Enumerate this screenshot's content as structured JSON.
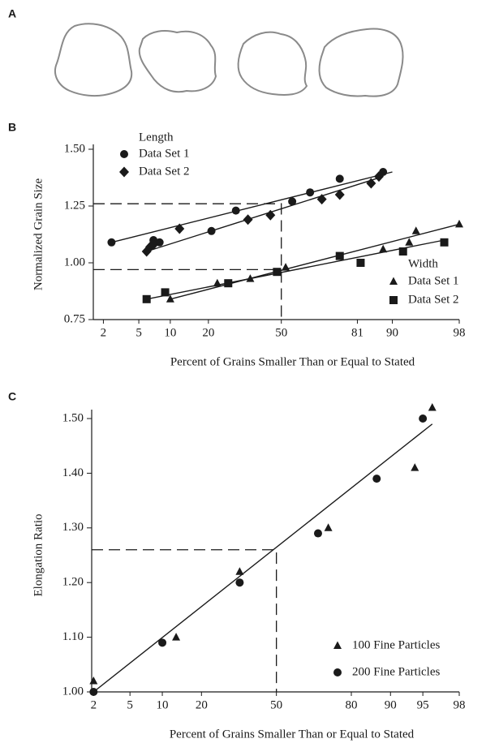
{
  "panel_a": {
    "label": "A"
  },
  "chart_data": [
    {
      "type": "scatter",
      "panel": "B",
      "xscale": "probability",
      "ylabel": "Normalized Grain Size",
      "xlabel": "Percent of Grains Smaller Than or Equal to Stated",
      "xlim": [
        1.5,
        98
      ],
      "xticks": [
        2,
        5,
        10,
        20,
        50,
        81,
        90,
        98
      ],
      "ylim": [
        0.75,
        1.5
      ],
      "yticks": [
        0.75,
        {
          "value": 1,
          "label": "1.00"
        },
        1.25,
        {
          "value": 1.5,
          "label": "1.50"
        }
      ],
      "reference_lines": [
        {
          "x": [
            1.5,
            50,
            50
          ],
          "y": [
            1.26,
            1.26,
            0.75
          ]
        },
        {
          "x": [
            1.5,
            50
          ],
          "y": [
            0.97,
            0.97
          ]
        }
      ],
      "groups": [
        {
          "title": "Length",
          "legend": "top-left",
          "series": [
            {
              "name": "Data Set 1",
              "marker": "circle",
              "color": "#1a1a1a",
              "x": [
                2.5,
                7,
                8,
                21,
                30,
                55,
                63,
                75,
                88
              ],
              "values": [
                1.09,
                1.1,
                1.09,
                1.14,
                1.23,
                1.27,
                1.31,
                1.37,
                1.4
              ],
              "fit": {
                "x": [
                  2.5,
                  90
                ],
                "y": [
                  1.09,
                  1.4
                ]
              }
            },
            {
              "name": "Data Set 2",
              "marker": "diamond",
              "color": "#1a1a1a",
              "x": [
                6,
                6.5,
                7,
                12,
                35,
                45,
                68,
                75,
                85,
                87
              ],
              "values": [
                1.05,
                1.07,
                1.08,
                1.15,
                1.19,
                1.21,
                1.28,
                1.3,
                1.35,
                1.38
              ],
              "fit": {
                "x": [
                  6,
                  88
                ],
                "y": [
                  1.05,
                  1.38
                ]
              }
            }
          ]
        },
        {
          "title": "Width",
          "legend": "right",
          "series": [
            {
              "name": "Data Set 1",
              "marker": "triangle",
              "color": "#1a1a1a",
              "x": [
                10,
                23,
                36,
                52,
                88,
                93,
                94,
                98
              ],
              "values": [
                0.84,
                0.91,
                0.93,
                0.98,
                1.06,
                1.09,
                1.14,
                1.17
              ],
              "fit": {
                "x": [
                  10,
                  98
                ],
                "y": [
                  0.84,
                  1.17
                ]
              }
            },
            {
              "name": "Data Set 2",
              "marker": "square",
              "color": "#1a1a1a",
              "x": [
                6,
                9,
                27,
                48,
                75,
                82,
                92,
                97
              ],
              "values": [
                0.84,
                0.87,
                0.91,
                0.96,
                1.03,
                1.0,
                1.05,
                1.09
              ],
              "fit": {
                "x": [
                  6,
                  97
                ],
                "y": [
                  0.84,
                  1.1
                ]
              }
            }
          ]
        }
      ]
    },
    {
      "type": "scatter",
      "panel": "C",
      "xscale": "probability",
      "ylabel": "Elongation Ratio",
      "xlabel": "Percent of Grains Smaller Than or Equal to Stated",
      "xlim": [
        1.9,
        98
      ],
      "xticks": [
        2,
        5,
        10,
        20,
        50,
        80,
        90,
        95,
        98
      ],
      "ylim": [
        1,
        1.5
      ],
      "yticks": [
        {
          "value": 1,
          "label": "1.00"
        },
        {
          "value": 1.1,
          "label": "1.10"
        },
        {
          "value": 1.2,
          "label": "1.20"
        },
        {
          "value": 1.3,
          "label": "1.30"
        },
        {
          "value": 1.4,
          "label": "1.40"
        },
        {
          "value": 1.5,
          "label": "1.50"
        }
      ],
      "reference_lines": [
        {
          "x": [
            1.9,
            50,
            50
          ],
          "y": [
            1.26,
            1.26,
            1
          ]
        }
      ],
      "fit": {
        "x": [
          2,
          96
        ],
        "y": [
          1.0,
          1.49
        ]
      },
      "groups": [
        {
          "legend": "lower-right",
          "series": [
            {
              "name": "100 Fine Particles",
              "marker": "triangle",
              "color": "#1a1a1a",
              "x": [
                2,
                13,
                34,
                72,
                94,
                96
              ],
              "values": [
                1.02,
                1.1,
                1.22,
                1.3,
                1.41,
                1.52
              ]
            },
            {
              "name": "200 Fine Particles",
              "marker": "circle",
              "color": "#1a1a1a",
              "x": [
                2,
                10,
                34,
                68,
                87,
                95
              ],
              "values": [
                1.0,
                1.09,
                1.2,
                1.29,
                1.39,
                1.5
              ]
            }
          ]
        }
      ]
    }
  ]
}
